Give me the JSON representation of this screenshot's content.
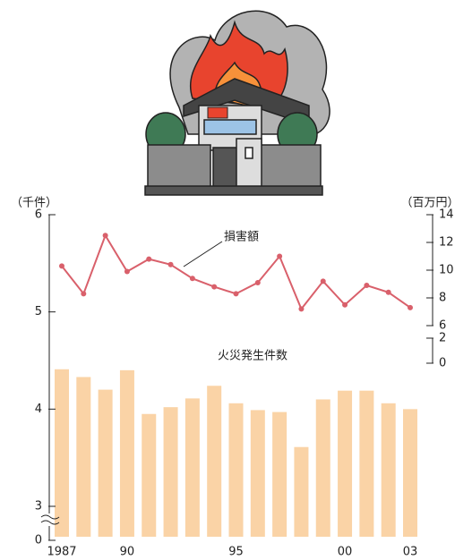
{
  "chart_data": {
    "type": "bar-line",
    "y_label": "（千件）",
    "y2_label": "（百万円）",
    "categories": [
      "1987",
      null,
      null,
      "90",
      null,
      null,
      null,
      null,
      "95",
      null,
      null,
      null,
      null,
      "00",
      null,
      null,
      "03"
    ],
    "series": [
      {
        "name": "火災発生件数",
        "type": "bar",
        "color": "#fad3a6",
        "values": [
          4.41,
          4.33,
          4.2,
          4.4,
          3.95,
          4.02,
          4.11,
          4.24,
          4.06,
          3.99,
          3.97,
          3.61,
          4.1,
          4.19,
          4.19,
          4.06,
          4.0
        ]
      },
      {
        "name": "損害額",
        "type": "line",
        "axis": "y2",
        "color": "#d9606b",
        "values": [
          10.3,
          8.3,
          12.5,
          9.9,
          10.8,
          10.4,
          9.4,
          8.8,
          8.3,
          9.1,
          11.0,
          7.2,
          9.2,
          7.5,
          8.9,
          8.4,
          7.3
        ]
      }
    ],
    "ylim": [
      0,
      6
    ],
    "ybreak": [
      0,
      3
    ],
    "yticks": [
      0,
      3,
      4,
      5,
      6
    ],
    "y2lim": [
      0,
      14
    ],
    "y2break": [
      2,
      6
    ],
    "y2ticks": [
      0,
      2,
      6,
      8,
      10,
      12,
      14
    ],
    "grid": false
  }
}
